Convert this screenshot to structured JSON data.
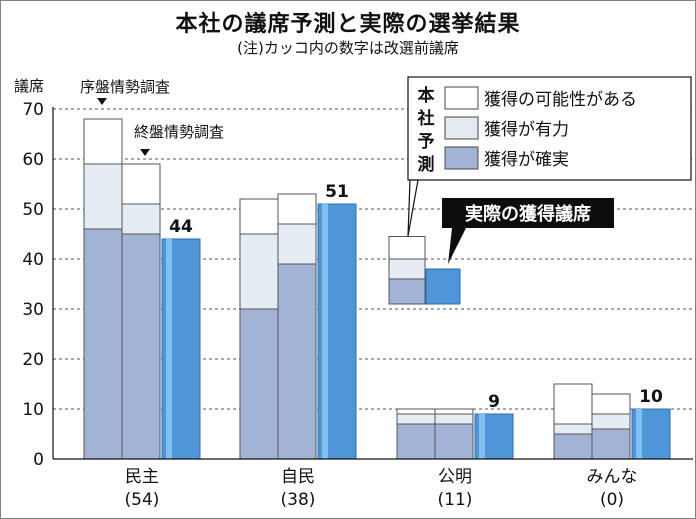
{
  "title": "本社の議席予測と実際の選挙結果",
  "subtitle": "(注)カッコ内の数字は改選前議席",
  "colors": {
    "possible": "#ffffff",
    "strong": "#e4ecf3",
    "certain": "#a3b3d6",
    "actual": "#4f96d8",
    "actual_edge": "#2a6fb5",
    "callout_bg": "#0d0d0d"
  },
  "chart_data": {
    "type": "bar",
    "ylabel": "議席",
    "ylim": [
      0,
      70
    ],
    "yticks": [
      0,
      10,
      20,
      30,
      40,
      50,
      60,
      70
    ],
    "grid": "dashed horizontal",
    "annotations": {
      "early": "序盤情勢調査",
      "late": "終盤情勢調査",
      "actual_callout": "実際の獲得議席"
    },
    "legend": {
      "title": "本社予測",
      "items": [
        {
          "key": "possible",
          "label": "獲得の可能性がある"
        },
        {
          "key": "strong",
          "label": "獲得が有力"
        },
        {
          "key": "certain",
          "label": "獲得が確実"
        }
      ],
      "placement": "top-right"
    },
    "parties": [
      {
        "name": "民主",
        "before": "(54)",
        "early": {
          "certain": 46,
          "strong": 59,
          "possible": 68
        },
        "late": {
          "certain": 45,
          "strong": 51,
          "possible": 59
        },
        "actual": 44,
        "actual_label": "44"
      },
      {
        "name": "自民",
        "before": "(38)",
        "early": {
          "certain": 30,
          "strong": 45,
          "possible": 52
        },
        "late": {
          "certain": 39,
          "strong": 47,
          "possible": 53
        },
        "actual": 51,
        "actual_label": "51"
      },
      {
        "name": "公明",
        "before": "(11)",
        "early": {
          "certain": 7,
          "strong": 9,
          "possible": 10
        },
        "late": {
          "certain": 7,
          "strong": 9,
          "possible": 10
        },
        "actual": 9,
        "actual_label": "9"
      },
      {
        "name": "みんな",
        "before": "(0)",
        "early": {
          "certain": 5,
          "strong": 7,
          "possible": 15
        },
        "late": {
          "certain": 6,
          "strong": 9,
          "possible": 13
        },
        "actual": 10,
        "actual_label": "10"
      }
    ],
    "legend_sample": {
      "certain": 36,
      "strong": 40,
      "possible": 44.5,
      "actual": 38
    }
  }
}
